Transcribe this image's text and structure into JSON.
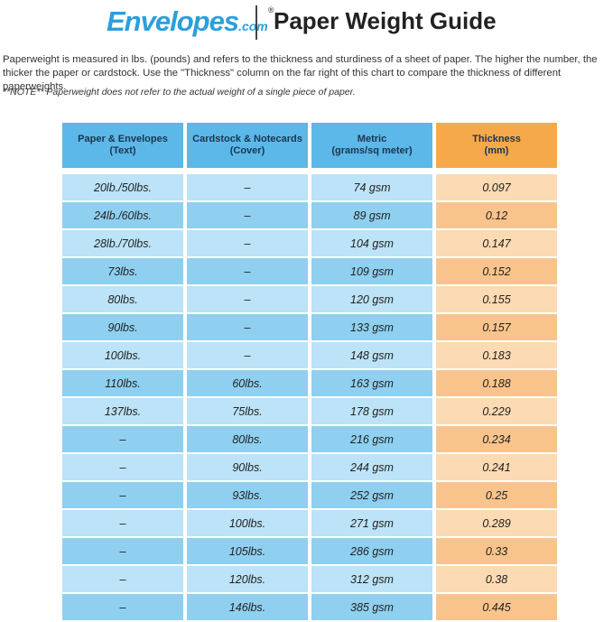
{
  "header": {
    "logo": "Envelopes",
    "logo_suffix": ".com",
    "logo_mark": "®",
    "title": "Paper Weight Guide"
  },
  "intro": "Paperweight is measured in lbs. (pounds) and refers to the thickness and sturdiness of a sheet of paper. The higher the number, the thicker the paper or cardstock. Use the \"Thickness\" column on the far right of this chart to compare the thickness of different paperweights.",
  "note": "**NOTE** Paperweight does not refer to the actual weight of a single piece of paper.",
  "table": {
    "headers": [
      [
        "Paper & Envelopes",
        "(Text)"
      ],
      [
        "Cardstock & Notecards",
        "(Cover)"
      ],
      [
        "Metric",
        "(grams/sq meter)"
      ],
      [
        "Thickness",
        "(mm)"
      ]
    ],
    "rows": [
      [
        "20lb./50lbs.",
        "–",
        "74 gsm",
        0.097
      ],
      [
        "24lb./60lbs.",
        "–",
        "89 gsm",
        0.12
      ],
      [
        "28lb./70lbs.",
        "–",
        "104 gsm",
        0.147
      ],
      [
        "73lbs.",
        "–",
        "109 gsm",
        0.152
      ],
      [
        "80lbs.",
        "–",
        "120 gsm",
        0.155
      ],
      [
        "90lbs.",
        "–",
        "133 gsm",
        0.157
      ],
      [
        "100lbs.",
        "–",
        "148 gsm",
        0.183
      ],
      [
        "110lbs.",
        "60lbs.",
        "163 gsm",
        0.188
      ],
      [
        "137lbs.",
        "75lbs.",
        "178 gsm",
        0.229
      ],
      [
        "–",
        "80lbs.",
        "216 gsm",
        0.234
      ],
      [
        "–",
        "90lbs.",
        "244 gsm",
        0.241
      ],
      [
        "–",
        "93lbs.",
        "252 gsm",
        0.25
      ],
      [
        "–",
        "100lbs.",
        "271 gsm",
        0.289
      ],
      [
        "–",
        "105lbs.",
        "286 gsm",
        0.33
      ],
      [
        "–",
        "120lbs.",
        "312 gsm",
        0.38
      ],
      [
        "–",
        "146lbs.",
        "385 gsm",
        0.445
      ]
    ]
  }
}
